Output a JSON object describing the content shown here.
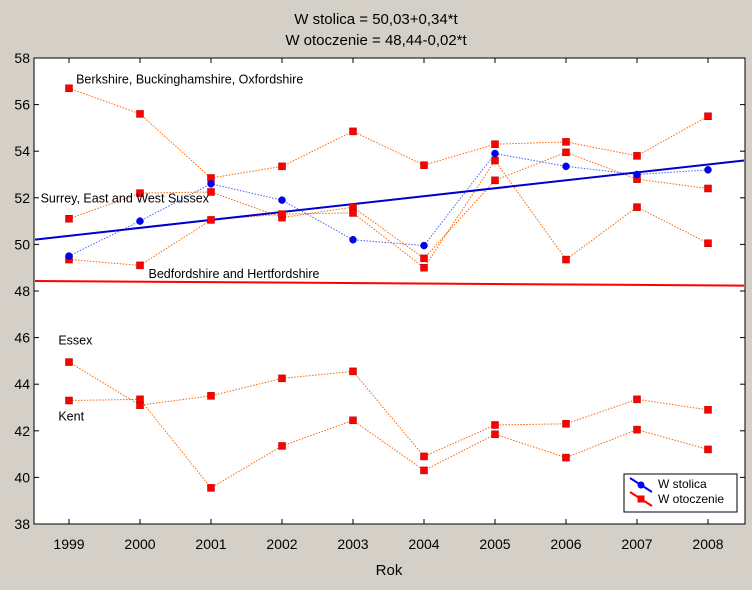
{
  "chart_data": {
    "type": "line",
    "title_lines": [
      "W stolica = 50,03+0,34*t",
      "W otoczenie = 48,44-0,02*t"
    ],
    "xlabel": "Rok",
    "ylabel": "",
    "x": [
      "1999",
      "2000",
      "2001",
      "2002",
      "2003",
      "2004",
      "2005",
      "2006",
      "2007",
      "2008"
    ],
    "xlim": [
      1998.5,
      2008.5
    ],
    "ylim": [
      38,
      58
    ],
    "yticks": [
      38,
      40,
      42,
      44,
      46,
      48,
      50,
      52,
      54,
      56,
      58
    ],
    "legend": {
      "placement": "bottom-right",
      "entries": [
        {
          "label": "W stolica",
          "color": "#0000ff",
          "marker": "circle"
        },
        {
          "label": "W otoczenie",
          "color": "#ff0000",
          "marker": "square"
        }
      ]
    },
    "stolica_series": [
      {
        "values": [
          49.5,
          51.0,
          52.6,
          51.9,
          50.2,
          49.95,
          53.9,
          53.35,
          53.0,
          53.2
        ]
      }
    ],
    "otoczenie_series": [
      {
        "values": [
          56.7,
          55.6,
          52.85,
          53.35,
          54.85,
          53.4,
          54.3,
          54.4,
          53.8,
          55.5
        ]
      },
      {
        "values": [
          51.1,
          52.2,
          52.25,
          51.15,
          51.6,
          49.4,
          52.75,
          53.95,
          52.8,
          52.4
        ]
      },
      {
        "values": [
          49.35,
          49.1,
          51.05,
          51.3,
          51.35,
          49.0,
          53.6,
          49.35,
          51.6,
          50.05
        ]
      },
      {
        "values": [
          44.95,
          43.1,
          43.5,
          44.25,
          44.55,
          40.9,
          42.25,
          42.3,
          43.35,
          42.9
        ]
      },
      {
        "values": [
          43.3,
          43.35,
          39.55,
          41.35,
          42.45,
          40.3,
          41.85,
          40.85,
          42.05,
          41.2
        ]
      }
    ],
    "regression": {
      "stolica": {
        "intercept": 50.03,
        "slope": 0.34,
        "color": "#0000cc"
      },
      "otoczenie": {
        "intercept": 48.44,
        "slope": -0.02,
        "color": "#ff0000"
      }
    },
    "annotations": [
      {
        "text": "Berkshire, Buckinghamshire, Oxfordshire",
        "x": 1999.1,
        "y": 56.9
      },
      {
        "text": "Surrey, East and West Sussex",
        "x": 1998.6,
        "y": 51.8
      },
      {
        "text": "Bedfordshire and Hertfordshire",
        "x": 2000.12,
        "y": 48.55
      },
      {
        "text": "Essex",
        "x": 1998.85,
        "y": 45.7
      },
      {
        "text": "Kent",
        "x": 1998.85,
        "y": 42.45
      }
    ],
    "colors": {
      "background": "#d4d0c8",
      "plot_background": "#ffffff",
      "stolica": "#0000ff",
      "otoczenie": "#ff0000",
      "dotted_line": "#ff6600",
      "dotted_line_stolica": "#4466ff"
    }
  }
}
